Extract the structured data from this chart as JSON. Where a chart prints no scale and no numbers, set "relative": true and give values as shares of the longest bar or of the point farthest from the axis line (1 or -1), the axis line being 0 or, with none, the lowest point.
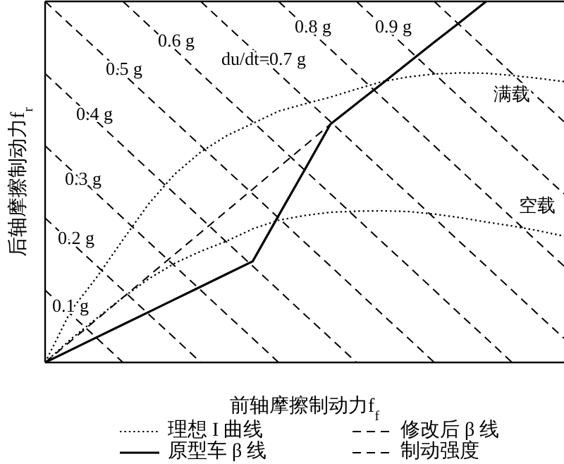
{
  "chart_data": {
    "type": "line",
    "relative": true,
    "xlabel": "前轴摩擦制动力f$_{f}$",
    "ylabel": "后轴摩擦制动力f$_{r}$",
    "legend": "bottom",
    "categories": [
      null,
      null,
      null,
      null,
      null,
      null,
      null,
      null,
      null,
      null,
      null,
      null,
      null,
      null,
      null,
      null,
      null,
      null,
      null,
      null,
      null
    ],
    "series": [
      {
        "name": "理想 I 曲线",
        "color": "#000000",
        "line_style": "dotted",
        "values": [
          0,
          0.144,
          0.237,
          0.34,
          0.44,
          0.522,
          0.583,
          0.628,
          0.662,
          0.696,
          0.716,
          0.735,
          0.757,
          0.778,
          0.791,
          0.799,
          0.802,
          0.801,
          0.795,
          0.787,
          0.778
        ]
      },
      {
        "color": "#000000",
        "line_style": "dotted",
        "values": [
          0,
          0.065,
          0.123,
          0.18,
          0.232,
          0.275,
          0.308,
          0.336,
          0.37,
          0.394,
          0.407,
          0.416,
          0.419,
          0.42,
          0.418,
          0.411,
          0.401,
          0.389,
          0.378,
          0.365,
          0.35
        ]
      },
      {
        "name": "原型车 β 线",
        "color": "#000000",
        "line_style": "solid",
        "values": [
          0,
          0.035,
          0.07,
          0.105,
          0.14,
          0.175,
          0.21,
          0.245,
          0.28,
          0.407,
          0.533,
          0.66,
          0.717,
          0.773,
          0.83,
          0.887,
          0.943,
          1.0,
          null,
          null,
          null
        ]
      },
      {
        "name": "修改后 β 线",
        "color": "#000000",
        "line_style": "dashed",
        "values": [
          0,
          0.06,
          0.12,
          0.18,
          0.24,
          0.3,
          0.36,
          0.42,
          0.48,
          0.54,
          0.6,
          0.66,
          null,
          null,
          null,
          null,
          null,
          null,
          null,
          null,
          null
        ]
      },
      {
        "name": "制动强度",
        "color": "#000000",
        "line_style": "dashed",
        "values": [
          0.2,
          0.133,
          0.067,
          0,
          null,
          null,
          null,
          null,
          null,
          null,
          null,
          null,
          null,
          null,
          null,
          null,
          null,
          null,
          null,
          null,
          null
        ]
      },
      {
        "color": "#000000",
        "line_style": "dashed",
        "values": [
          0.4,
          0.333,
          0.267,
          0.2,
          0.133,
          0.067,
          0,
          null,
          null,
          null,
          null,
          null,
          null,
          null,
          null,
          null,
          null,
          null,
          null,
          null,
          null
        ]
      },
      {
        "color": "#000000",
        "line_style": "dashed",
        "values": [
          0.6,
          0.533,
          0.467,
          0.4,
          0.333,
          0.267,
          0.2,
          0.133,
          0.067,
          0,
          null,
          null,
          null,
          null,
          null,
          null,
          null,
          null,
          null,
          null,
          null
        ]
      },
      {
        "color": "#000000",
        "line_style": "dashed",
        "values": [
          0.8,
          0.733,
          0.667,
          0.6,
          0.533,
          0.467,
          0.4,
          0.333,
          0.267,
          0.2,
          0.133,
          0.067,
          0,
          null,
          null,
          null,
          null,
          null,
          null,
          null,
          null
        ]
      },
      {
        "color": "#000000",
        "line_style": "dashed",
        "values": [
          1.0,
          0.933,
          0.867,
          0.8,
          0.733,
          0.667,
          0.6,
          0.533,
          0.467,
          0.4,
          0.333,
          0.267,
          0.2,
          0.133,
          0.067,
          0,
          null,
          null,
          null,
          null,
          null
        ]
      },
      {
        "color": "#000000",
        "line_style": "dashed",
        "values": [
          null,
          null,
          null,
          1.0,
          0.933,
          0.867,
          0.8,
          0.733,
          0.667,
          0.6,
          0.533,
          0.467,
          0.4,
          0.333,
          0.267,
          0.2,
          0.133,
          0.067,
          0,
          null,
          null
        ]
      },
      {
        "color": "#000000",
        "line_style": "dashed",
        "values": [
          null,
          null,
          null,
          null,
          null,
          null,
          1.0,
          0.933,
          0.867,
          0.8,
          0.733,
          0.667,
          0.6,
          0.533,
          0.467,
          0.4,
          0.333,
          0.267,
          0.2,
          0.133,
          0.067
        ]
      },
      {
        "color": "#000000",
        "line_style": "dashed",
        "values": [
          null,
          null,
          null,
          null,
          null,
          null,
          null,
          null,
          null,
          1.0,
          0.933,
          0.867,
          0.8,
          0.733,
          0.667,
          0.6,
          0.533,
          0.467,
          0.4,
          0.333,
          0.267
        ]
      },
      {
        "color": "#000000",
        "line_style": "dashed",
        "values": [
          null,
          null,
          null,
          null,
          null,
          null,
          null,
          null,
          null,
          null,
          null,
          null,
          1.0,
          0.933,
          0.867,
          0.8,
          0.733,
          0.667,
          0.6,
          0.533,
          0.467
        ]
      },
      {
        "color": "#000000",
        "line_style": "dashed",
        "values": [
          null,
          null,
          null,
          null,
          null,
          null,
          null,
          null,
          null,
          null,
          null,
          null,
          null,
          null,
          null,
          1.0,
          0.933,
          0.867,
          0.8,
          0.733,
          0.667
        ]
      }
    ],
    "annotations": [
      "0.1 g",
      "0.2 g",
      "0.3 g",
      "0.4 g",
      "0.5 g",
      "0.6 g",
      "du/dt=0.7 g",
      "0.8 g",
      "0.9 g",
      "满载",
      "空载"
    ]
  }
}
